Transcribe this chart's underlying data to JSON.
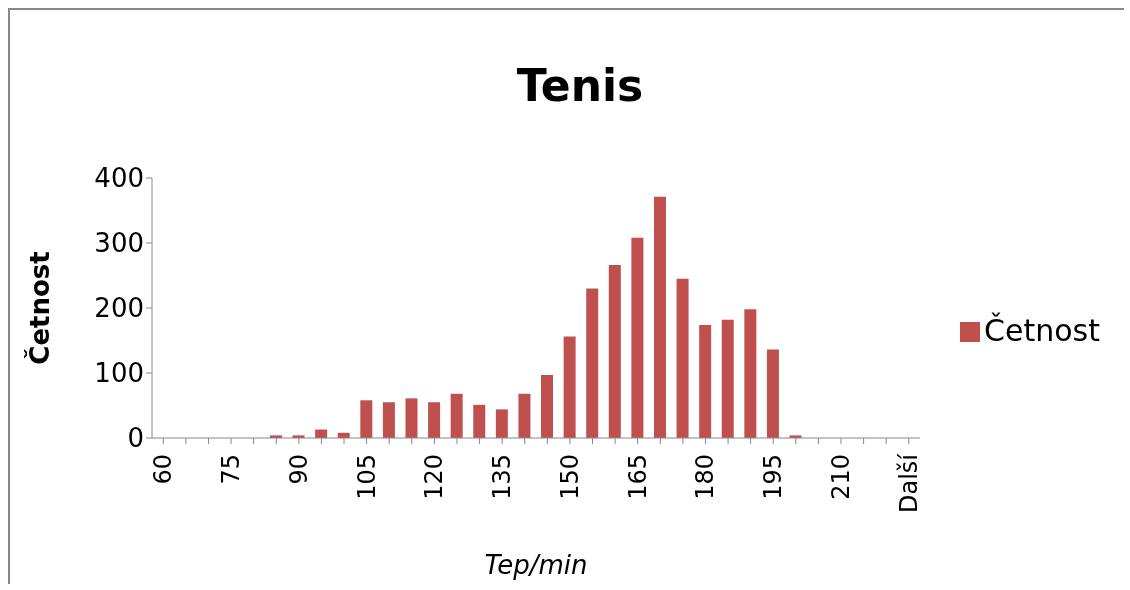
{
  "chart_data": {
    "type": "bar",
    "title": "Tenis",
    "xlabel": "Tep/min",
    "ylabel": "Četnost",
    "categories": [
      "60",
      null,
      null,
      "75",
      null,
      null,
      "90",
      null,
      null,
      "105",
      null,
      null,
      "120",
      null,
      null,
      "135",
      null,
      null,
      "150",
      null,
      null,
      "165",
      null,
      null,
      "180",
      null,
      null,
      "195",
      null,
      null,
      "210",
      null,
      null,
      "Další"
    ],
    "series": [
      {
        "name": "Četnost",
        "color": "#c0504d",
        "values": [
          0,
          0,
          0,
          0,
          0,
          4,
          4,
          13,
          8,
          58,
          55,
          61,
          55,
          68,
          51,
          44,
          68,
          97,
          156,
          230,
          266,
          308,
          371,
          245,
          174,
          182,
          198,
          136,
          4,
          0,
          0,
          0,
          0,
          0
        ]
      }
    ],
    "ylim": [
      0,
      400
    ],
    "yticks": [
      0,
      100,
      200,
      300,
      400
    ],
    "grid": false,
    "legend": "right"
  }
}
